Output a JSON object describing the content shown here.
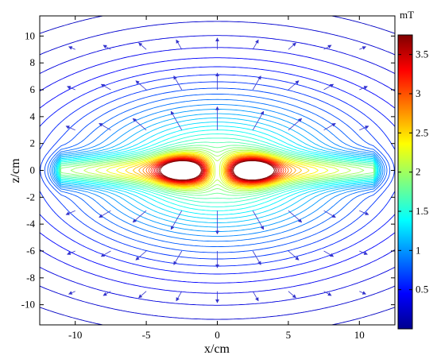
{
  "chart_data": {
    "type": "contour",
    "title": "",
    "xlabel": "x/cm",
    "ylabel": "z/cm",
    "xlim": [
      -12.5,
      12.5
    ],
    "ylim": [
      -11.5,
      11.5
    ],
    "x_ticks": [
      -10,
      -5,
      0,
      5,
      10
    ],
    "y_ticks": [
      -10,
      -8,
      -6,
      -4,
      -2,
      0,
      2,
      4,
      6,
      8,
      10
    ],
    "colorbar": {
      "label": "mT",
      "range": [
        0,
        3.75
      ],
      "ticks": [
        0.5,
        1,
        1.5,
        2,
        2.5,
        3,
        3.5
      ],
      "colormap": "jet"
    },
    "field_sources": [
      {
        "x": -2.6,
        "z": 0,
        "peak": 3.7
      },
      {
        "x": 2.6,
        "z": 0,
        "peak": 3.7
      }
    ],
    "field_features": {
      "plane_edges_x": [
        -11,
        11
      ],
      "center_gap_x": 0
    },
    "show_vector_arrows": true,
    "contour_line_count": 45,
    "colors": {
      "axis": "#000000",
      "background": "#ffffff"
    }
  }
}
